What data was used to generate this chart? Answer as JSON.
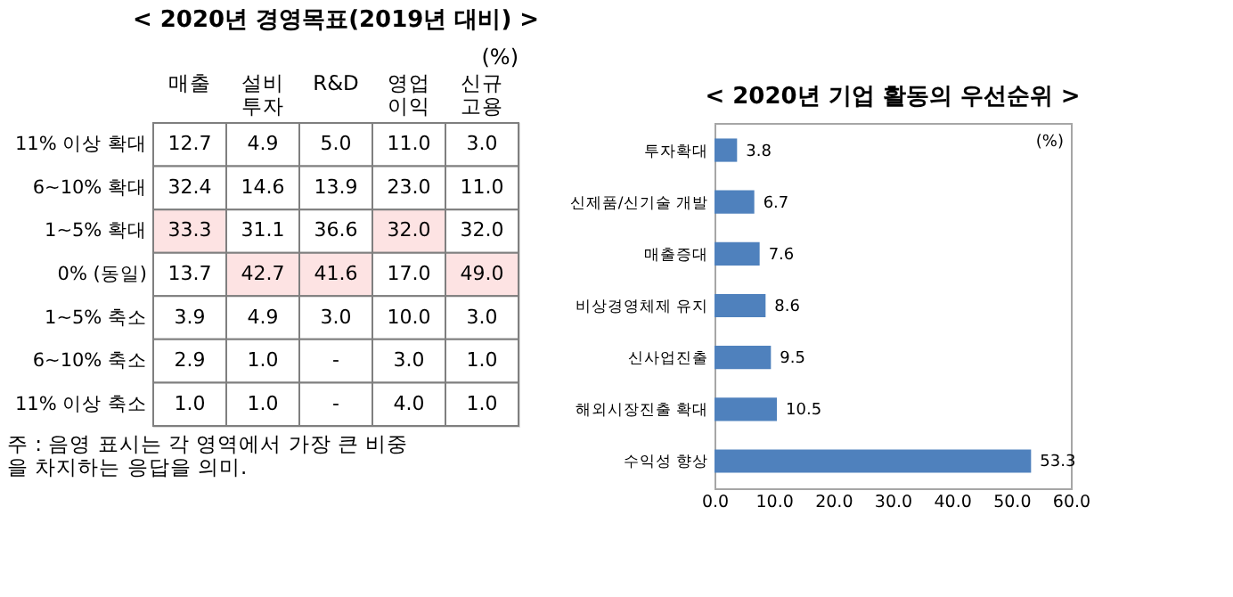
{
  "chart_data": [
    {
      "type": "heatmap",
      "title": "< 2020년 경영목표(2019년 대비) >",
      "categories": [
        "매출",
        "설비\n투자",
        "R&D",
        "영업\n이익",
        "신규\n고용"
      ],
      "y_categories": [
        "11% 이상 확대",
        "6~10% 확대",
        "1~5% 확대",
        "0% (동일)",
        "1~5% 축소",
        "6~10% 축소",
        "11% 이상 축소"
      ],
      "cells": [
        [
          12.7,
          4.9,
          5.0,
          11.0,
          3.0
        ],
        [
          32.4,
          14.6,
          13.9,
          23.0,
          11.0
        ],
        [
          33.3,
          31.1,
          36.6,
          32.0,
          32.0
        ],
        [
          13.7,
          42.7,
          41.6,
          17.0,
          49.0
        ],
        [
          3.9,
          4.9,
          3.0,
          10.0,
          3.0
        ],
        [
          2.9,
          1.0,
          null,
          3.0,
          1.0
        ],
        [
          1.0,
          1.0,
          null,
          4.0,
          1.0
        ]
      ],
      "cell_labels": [
        [
          "12.7",
          "4.9",
          "5.0",
          "11.0",
          "3.0"
        ],
        [
          "32.4",
          "14.6",
          "13.9",
          "23.0",
          "11.0"
        ],
        [
          "33.3",
          "31.1",
          "36.6",
          "32.0",
          "32.0"
        ],
        [
          "13.7",
          "42.7",
          "41.6",
          "17.0",
          "49.0"
        ],
        [
          "3.9",
          "4.9",
          "3.0",
          "10.0",
          "3.0"
        ],
        [
          "2.9",
          "1.0",
          "-",
          "3.0",
          "1.0"
        ],
        [
          "1.0",
          "1.0",
          "-",
          "4.0",
          "1.0"
        ]
      ],
      "annotations": [
        "(%)",
        "주 : 음영 표시는 각 영역에서 가장 큰 비중\n을 차지하는 응답을 의미."
      ]
    },
    {
      "type": "bar",
      "orientation": "horizontal",
      "title": "< 2020년 기업 활동의 우선순위 >",
      "categories": [
        "투자확대",
        "신제품/신기술 개발",
        "매출증대",
        "비상경영체제 유지",
        "신사업진출",
        "해외시장진출 확대",
        "수익성 향상"
      ],
      "values": [
        3.8,
        6.7,
        7.6,
        8.6,
        9.5,
        10.5,
        53.3
      ],
      "color": "#4f81bd",
      "data_labels": true,
      "xlim": [
        0,
        60
      ],
      "xticks": [
        {
          "value": 0,
          "label": "0.0"
        },
        {
          "value": 10,
          "label": "10.0"
        },
        {
          "value": 20,
          "label": "20.0"
        },
        {
          "value": 30,
          "label": "30.0"
        },
        {
          "value": 40,
          "label": "40.0"
        },
        {
          "value": 50,
          "label": "50.0"
        },
        {
          "value": 60,
          "label": "60.0"
        }
      ],
      "annotations": [
        "(%)"
      ]
    }
  ]
}
